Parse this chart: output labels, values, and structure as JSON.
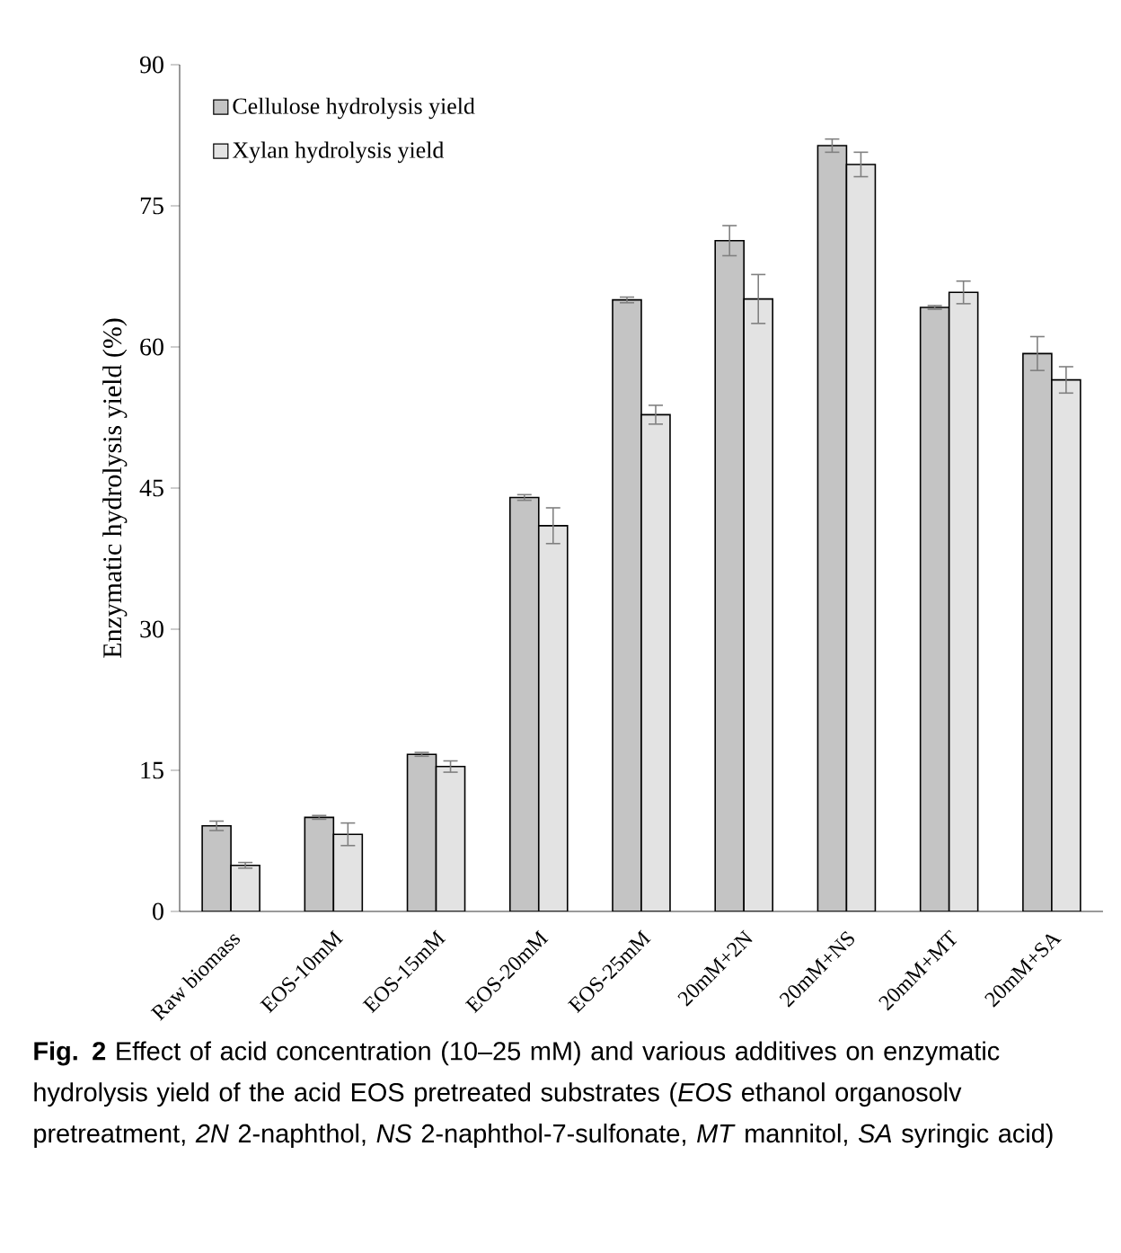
{
  "chart_data": {
    "type": "bar",
    "ylabel": "Enzymatic hydrolysis yield (%)",
    "categories": [
      "Raw biomass",
      "EOS-10mM",
      "EOS-15mM",
      "EOS-20mM",
      "EOS-25mM",
      "20mM+2N",
      "20mM+NS",
      "20mM+MT",
      "20mM+SA"
    ],
    "series": [
      {
        "name": "Cellulose hydrolysis yield",
        "color": "#c4c4c4",
        "values": [
          9.1,
          10.0,
          16.7,
          44.0,
          65.0,
          71.3,
          81.4,
          64.2,
          59.3
        ],
        "errors": [
          0.5,
          0.2,
          0.2,
          0.3,
          0.3,
          1.6,
          0.7,
          0.2,
          1.8
        ]
      },
      {
        "name": "Xylan hydrolysis yield",
        "color": "#e3e3e3",
        "values": [
          4.9,
          8.2,
          15.4,
          41.0,
          52.8,
          65.1,
          79.4,
          65.8,
          56.5
        ],
        "errors": [
          0.3,
          1.2,
          0.6,
          1.9,
          1.0,
          2.6,
          1.3,
          1.2,
          1.4
        ]
      }
    ],
    "ylim": [
      0,
      90
    ],
    "yticks": [
      0,
      15,
      30,
      45,
      60,
      75,
      90
    ],
    "grid": false,
    "legend": "top left",
    "annotations": [
      "**Fig. 2**  Effect of acid concentration (10–25 mM) and various additives on enzymatic hydrolysis yield of the acid EOS pretreated substrates (*EOS* ethanol organosolv pretreatment, *2N* 2-naphthol, *NS* 2-naphthol-7-sulfonate, *MT* mannitol, *SA* syringic acid)"
    ]
  }
}
